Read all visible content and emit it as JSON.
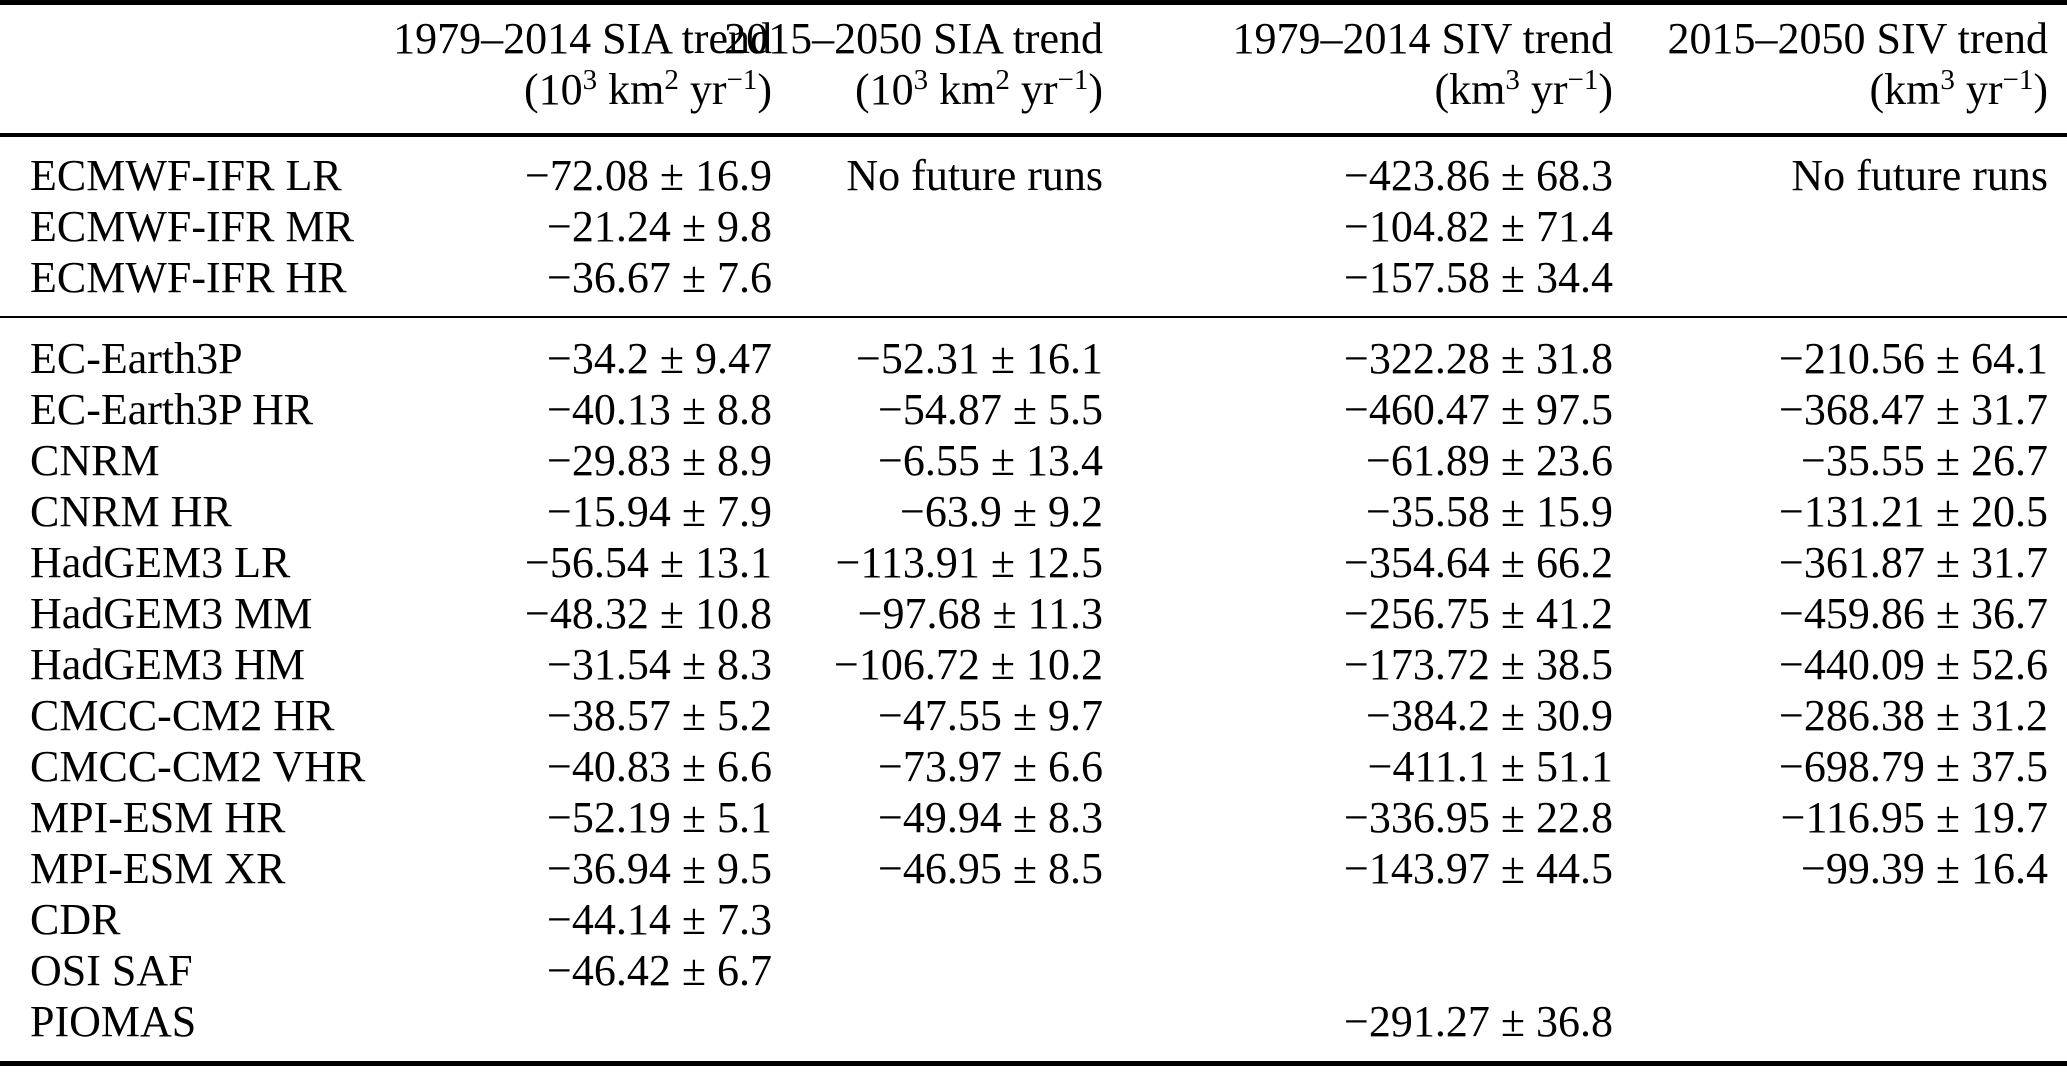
{
  "colors": {
    "text": "#000000",
    "background": "#ffffff",
    "rule": "#000000"
  },
  "table": {
    "columns": {
      "model": {
        "title": ""
      },
      "sia_hist": {
        "title": "1979–2014 SIA trend",
        "unit_text": "(10³ km² yr⁻¹)",
        "unit_parts": [
          {
            "t": "(10"
          },
          {
            "s": "3"
          },
          {
            "t": " km"
          },
          {
            "s": "2"
          },
          {
            "t": " yr"
          },
          {
            "s": "−1"
          },
          {
            "t": ")"
          }
        ]
      },
      "sia_fut": {
        "title": "2015–2050 SIA trend",
        "unit_text": "(10³ km² yr⁻¹)",
        "unit_parts": [
          {
            "t": "(10"
          },
          {
            "s": "3"
          },
          {
            "t": " km"
          },
          {
            "s": "2"
          },
          {
            "t": " yr"
          },
          {
            "s": "−1"
          },
          {
            "t": ")"
          }
        ]
      },
      "siv_hist": {
        "title": "1979–2014 SIV trend",
        "unit_text": "(km³ yr⁻¹)",
        "unit_parts": [
          {
            "t": "(km"
          },
          {
            "s": "3"
          },
          {
            "t": " yr"
          },
          {
            "s": "−1"
          },
          {
            "t": ")"
          }
        ]
      },
      "siv_fut": {
        "title": "2015–2050 SIV trend",
        "unit_text": "(km³ yr⁻¹)",
        "unit_parts": [
          {
            "t": "(km"
          },
          {
            "s": "3"
          },
          {
            "t": " yr"
          },
          {
            "s": "−1"
          },
          {
            "t": ")"
          }
        ]
      }
    },
    "groups": [
      {
        "rows": [
          {
            "model": "ECMWF-IFR LR",
            "sia_hist": "−72.08 ± 16.9",
            "sia_fut": "No future runs",
            "siv_hist": "−423.86 ± 68.3",
            "siv_fut": "No future runs"
          },
          {
            "model": "ECMWF-IFR MR",
            "sia_hist": "−21.24 ± 9.8",
            "sia_fut": "",
            "siv_hist": "−104.82 ± 71.4",
            "siv_fut": ""
          },
          {
            "model": "ECMWF-IFR HR",
            "sia_hist": "−36.67 ± 7.6",
            "sia_fut": "",
            "siv_hist": "−157.58 ± 34.4",
            "siv_fut": ""
          }
        ]
      },
      {
        "rows": [
          {
            "model": "EC-Earth3P",
            "sia_hist": "−34.2 ± 9.47",
            "sia_fut": "−52.31 ± 16.1",
            "siv_hist": "−322.28 ± 31.8",
            "siv_fut": "−210.56 ± 64.1"
          },
          {
            "model": "EC-Earth3P HR",
            "sia_hist": "−40.13 ± 8.8",
            "sia_fut": "−54.87 ± 5.5",
            "siv_hist": "−460.47 ± 97.5",
            "siv_fut": "−368.47 ± 31.7"
          },
          {
            "model": "CNRM",
            "sia_hist": "−29.83 ± 8.9",
            "sia_fut": "−6.55 ± 13.4",
            "siv_hist": "−61.89 ± 23.6",
            "siv_fut": "−35.55 ± 26.7"
          },
          {
            "model": "CNRM HR",
            "sia_hist": "−15.94 ± 7.9",
            "sia_fut": "−63.9 ± 9.2",
            "siv_hist": "−35.58 ± 15.9",
            "siv_fut": "−131.21 ± 20.5"
          },
          {
            "model": "HadGEM3 LR",
            "sia_hist": "−56.54 ± 13.1",
            "sia_fut": "−113.91 ± 12.5",
            "siv_hist": "−354.64 ± 66.2",
            "siv_fut": "−361.87 ± 31.7"
          },
          {
            "model": "HadGEM3 MM",
            "sia_hist": "−48.32 ± 10.8",
            "sia_fut": "−97.68 ± 11.3",
            "siv_hist": "−256.75 ± 41.2",
            "siv_fut": "−459.86 ± 36.7"
          },
          {
            "model": "HadGEM3 HM",
            "sia_hist": "−31.54 ± 8.3",
            "sia_fut": "−106.72 ± 10.2",
            "siv_hist": "−173.72 ± 38.5",
            "siv_fut": "−440.09 ± 52.6"
          },
          {
            "model": "CMCC-CM2 HR",
            "sia_hist": "−38.57 ± 5.2",
            "sia_fut": "−47.55 ± 9.7",
            "siv_hist": "−384.2 ± 30.9",
            "siv_fut": "−286.38 ± 31.2"
          },
          {
            "model": "CMCC-CM2 VHR",
            "sia_hist": "−40.83 ± 6.6",
            "sia_fut": "−73.97 ± 6.6",
            "siv_hist": "−411.1 ± 51.1",
            "siv_fut": "−698.79 ± 37.5"
          },
          {
            "model": "MPI-ESM HR",
            "sia_hist": "−52.19 ± 5.1",
            "sia_fut": "−49.94 ± 8.3",
            "siv_hist": "−336.95 ± 22.8",
            "siv_fut": "−116.95 ± 19.7"
          },
          {
            "model": "MPI-ESM XR",
            "sia_hist": "−36.94 ± 9.5",
            "sia_fut": "−46.95 ± 8.5",
            "siv_hist": "−143.97 ± 44.5",
            "siv_fut": "−99.39 ± 16.4"
          },
          {
            "model": "CDR",
            "sia_hist": "−44.14 ± 7.3",
            "sia_fut": "",
            "siv_hist": "",
            "siv_fut": ""
          },
          {
            "model": "OSI SAF",
            "sia_hist": "−46.42 ± 6.7",
            "sia_fut": "",
            "siv_hist": "",
            "siv_fut": ""
          },
          {
            "model": "PIOMAS",
            "sia_hist": "",
            "sia_fut": "",
            "siv_hist": "−291.27 ± 36.8",
            "siv_fut": ""
          }
        ]
      }
    ]
  }
}
